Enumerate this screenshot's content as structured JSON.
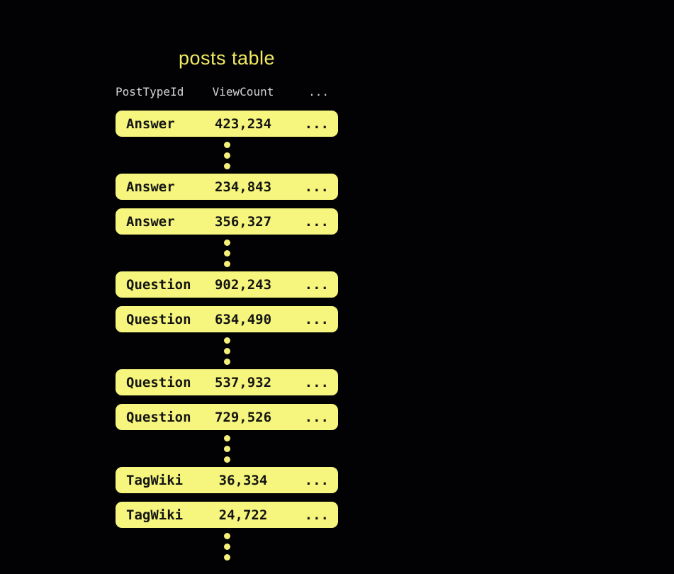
{
  "title": "posts table",
  "colors": {
    "background": "#020204",
    "row_fill": "#f6f57d",
    "row_text": "#141414",
    "title_text": "#efe963",
    "header_text": "#d5d5d5",
    "dot_fill": "#f4f07b"
  },
  "table": {
    "columns": [
      "PostTypeId",
      "ViewCount",
      "..."
    ],
    "ellipsis_dot_count": 3,
    "groups": [
      {
        "rows": [
          {
            "post_type": "Answer",
            "view_count": "423,234",
            "more": "..."
          }
        ]
      },
      {
        "rows": [
          {
            "post_type": "Answer",
            "view_count": "234,843",
            "more": "..."
          },
          {
            "post_type": "Answer",
            "view_count": "356,327",
            "more": "..."
          }
        ]
      },
      {
        "rows": [
          {
            "post_type": "Question",
            "view_count": "902,243",
            "more": "..."
          },
          {
            "post_type": "Question",
            "view_count": "634,490",
            "more": "..."
          }
        ]
      },
      {
        "rows": [
          {
            "post_type": "Question",
            "view_count": "537,932",
            "more": "..."
          },
          {
            "post_type": "Question",
            "view_count": "729,526",
            "more": "..."
          }
        ]
      },
      {
        "rows": [
          {
            "post_type": "TagWiki",
            "view_count": "36,334",
            "more": "..."
          },
          {
            "post_type": "TagWiki",
            "view_count": "24,722",
            "more": "..."
          }
        ]
      }
    ]
  }
}
